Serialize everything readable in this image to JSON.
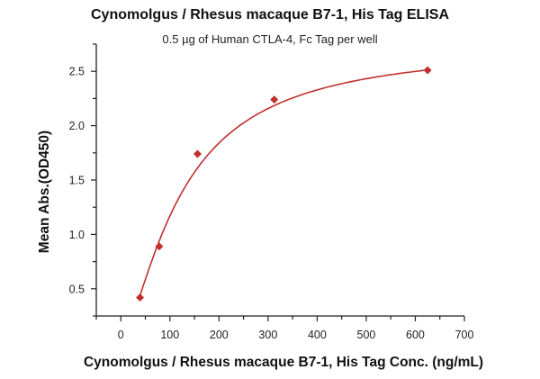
{
  "chart_data": {
    "type": "scatter",
    "title": "Cynomolgus / Rhesus macaque B7-1, His Tag ELISA",
    "subtitle": "0.5 µg of Human CTLA-4, Fc Tag per well",
    "xlabel": "Cynomolgus / Rhesus macaque B7-1, His Tag Conc. (ng/mL)",
    "ylabel": "Mean Abs.(OD450)",
    "xlim": [
      -50,
      700
    ],
    "ylim": [
      0.25,
      2.75
    ],
    "xticks": [
      0,
      100,
      200,
      300,
      400,
      500,
      600,
      700
    ],
    "yticks": [
      0.5,
      1.0,
      1.5,
      2.0,
      2.5
    ],
    "ytick_labels": [
      "0.5",
      "1.0",
      "1.5",
      "2.0",
      "2.5"
    ],
    "grid": false,
    "fit_curve": true,
    "color": "#c0302e",
    "x": [
      39.06,
      78.13,
      156.25,
      312.5,
      625
    ],
    "y": [
      0.42,
      0.89,
      1.74,
      2.24,
      2.51
    ]
  }
}
